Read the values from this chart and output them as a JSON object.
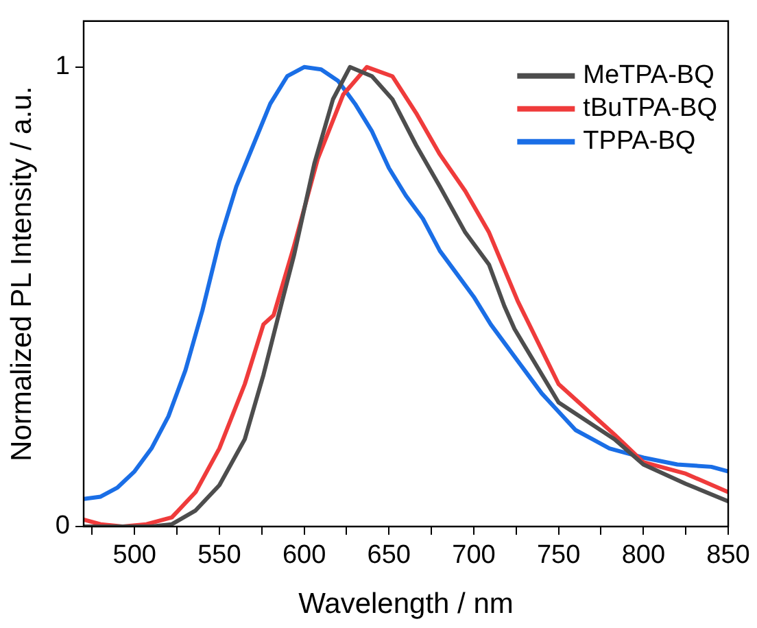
{
  "chart_data": {
    "type": "line",
    "xlabel": "Wavelength / nm",
    "ylabel": "Normalized PL Intensity / a.u.",
    "xlim": [
      470,
      850
    ],
    "ylim": [
      0,
      1.1
    ],
    "xticks": [
      {
        "value": 475,
        "label": null
      },
      500,
      {
        "value": 525,
        "label": null
      },
      550,
      {
        "value": 575,
        "label": null
      },
      600,
      {
        "value": 625,
        "label": null
      },
      650,
      {
        "value": 675,
        "label": null
      },
      700,
      {
        "value": 725,
        "label": null
      },
      750,
      {
        "value": 775,
        "label": null
      },
      800,
      {
        "value": 825,
        "label": null
      },
      850
    ],
    "yticks": [
      0,
      1
    ],
    "grid": false,
    "legend": "top right",
    "marker": "none",
    "line_style": "solid",
    "series": [
      {
        "name": "MeTPA-BQ",
        "color": "#4d4d4d",
        "x": [
          470,
          490,
          510,
          522,
          536,
          550,
          565,
          576,
          587,
          594,
          606,
          617,
          627,
          640,
          652,
          666,
          680,
          695,
          709,
          718,
          724,
          750,
          783,
          800,
          825,
          850
        ],
        "values": [
          0,
          0,
          0,
          0.005,
          0.035,
          0.09,
          0.19,
          0.33,
          0.49,
          0.59,
          0.79,
          0.93,
          1.0,
          0.98,
          0.93,
          0.83,
          0.74,
          0.64,
          0.57,
          0.48,
          0.43,
          0.27,
          0.19,
          0.135,
          0.093,
          0.055
        ]
      },
      {
        "name": "tBuTPA-BQ",
        "color": "#ef3b3b",
        "x": [
          470,
          480,
          493,
          507,
          522,
          536,
          550,
          565,
          576,
          582,
          594,
          608,
          623,
          637,
          652,
          666,
          680,
          695,
          709,
          726,
          750,
          783,
          800,
          825,
          850
        ],
        "values": [
          0.015,
          0.005,
          0,
          0.005,
          0.02,
          0.075,
          0.17,
          0.31,
          0.44,
          0.46,
          0.61,
          0.8,
          0.94,
          1.0,
          0.98,
          0.9,
          0.81,
          0.73,
          0.64,
          0.49,
          0.31,
          0.2,
          0.14,
          0.115,
          0.075
        ]
      },
      {
        "name": "TPPA-BQ",
        "color": "#1a6ee6",
        "x": [
          470,
          480,
          490,
          500,
          510,
          520,
          530,
          540,
          550,
          560,
          570,
          580,
          590,
          600,
          610,
          620,
          630,
          640,
          650,
          660,
          670,
          680,
          690,
          700,
          710,
          720,
          730,
          740,
          750,
          760,
          770,
          780,
          790,
          800,
          820,
          840,
          850
        ],
        "values": [
          0.06,
          0.065,
          0.085,
          0.12,
          0.17,
          0.24,
          0.34,
          0.47,
          0.62,
          0.74,
          0.83,
          0.92,
          0.98,
          1.0,
          0.995,
          0.97,
          0.92,
          0.86,
          0.78,
          0.72,
          0.67,
          0.6,
          0.55,
          0.5,
          0.44,
          0.39,
          0.34,
          0.29,
          0.25,
          0.21,
          0.19,
          0.17,
          0.16,
          0.15,
          0.135,
          0.13,
          0.12
        ]
      }
    ]
  }
}
